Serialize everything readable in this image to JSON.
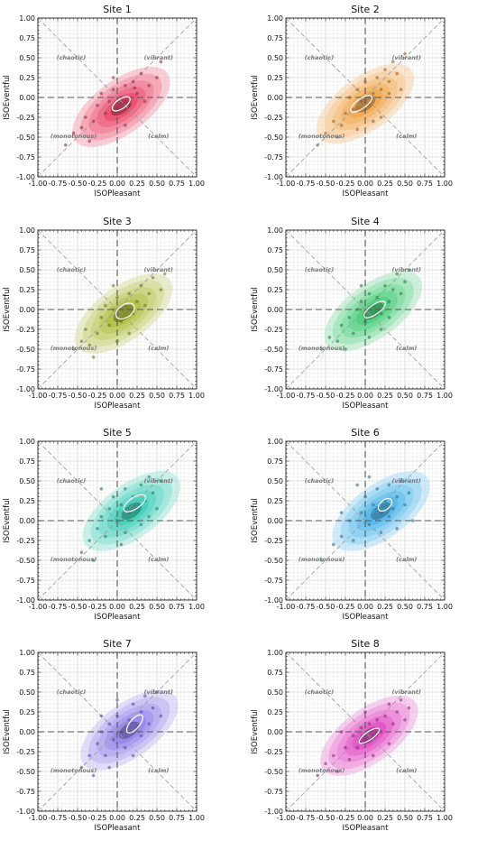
{
  "figure": {
    "panel_titles": [
      "Site 1",
      "Site 2",
      "Site 3",
      "Site 4",
      "Site 5",
      "Site 6",
      "Site 7",
      "Site 8"
    ]
  },
  "chart_data": [
    {
      "type": "scatter",
      "title": "Site 1",
      "xlabel": "ISOPleasant",
      "ylabel": "ISOEventful",
      "xlim": [
        -1,
        1
      ],
      "ylim": [
        -1,
        1
      ],
      "ticks": [
        "-1.00",
        "-0.75",
        "-0.50",
        "-0.25",
        "0.00",
        "0.25",
        "0.50",
        "0.75",
        "1.00"
      ],
      "quadrant_labels": [
        "(chaotic)",
        "(vibrant)",
        "(monotonous)",
        "(calm)"
      ],
      "grid": true,
      "color": "#e8395f",
      "density_center": [
        0.05,
        -0.12
      ],
      "mean_ellipse": {
        "center": [
          0.05,
          -0.08
        ],
        "rx": 0.13,
        "ry": 0.06,
        "angle": 35
      },
      "points": [
        [
          -0.65,
          -0.6
        ],
        [
          -0.55,
          -0.45
        ],
        [
          -0.45,
          -0.38
        ],
        [
          -0.4,
          -0.25
        ],
        [
          -0.3,
          -0.3
        ],
        [
          -0.25,
          -0.1
        ],
        [
          -0.2,
          0.05
        ],
        [
          -0.15,
          -0.2
        ],
        [
          -0.1,
          -0.05
        ],
        [
          -0.05,
          0.1
        ],
        [
          0.0,
          -0.15
        ],
        [
          0.05,
          0.0
        ],
        [
          0.1,
          0.15
        ],
        [
          0.15,
          -0.1
        ],
        [
          0.2,
          0.2
        ],
        [
          0.25,
          0.05
        ],
        [
          0.3,
          0.3
        ],
        [
          0.35,
          -0.05
        ],
        [
          0.4,
          0.15
        ],
        [
          0.5,
          0.25
        ],
        [
          0.55,
          0.45
        ],
        [
          -0.35,
          -0.55
        ],
        [
          0.1,
          -0.35
        ],
        [
          -0.05,
          0.25
        ],
        [
          0.22,
          0.12
        ]
      ]
    },
    {
      "type": "scatter",
      "title": "Site 2",
      "xlabel": "ISOPleasant",
      "ylabel": "ISOEventful",
      "xlim": [
        -1,
        1
      ],
      "ylim": [
        -1,
        1
      ],
      "ticks": [
        "-1.00",
        "-0.75",
        "-0.50",
        "-0.25",
        "0.00",
        "0.25",
        "0.50",
        "0.75",
        "1.00"
      ],
      "quadrant_labels": [
        "(chaotic)",
        "(vibrant)",
        "(monotonous)",
        "(calm)"
      ],
      "grid": true,
      "color": "#f0a040",
      "density_center": [
        0.0,
        -0.08
      ],
      "mean_ellipse": {
        "center": [
          -0.05,
          -0.08
        ],
        "rx": 0.16,
        "ry": 0.06,
        "angle": 35
      },
      "points": [
        [
          -0.6,
          -0.6
        ],
        [
          -0.5,
          -0.45
        ],
        [
          -0.4,
          -0.3
        ],
        [
          -0.35,
          -0.5
        ],
        [
          -0.25,
          -0.2
        ],
        [
          -0.2,
          0.0
        ],
        [
          -0.15,
          -0.15
        ],
        [
          -0.1,
          0.1
        ],
        [
          -0.05,
          -0.05
        ],
        [
          0.0,
          0.2
        ],
        [
          0.05,
          -0.1
        ],
        [
          0.1,
          0.05
        ],
        [
          0.15,
          0.25
        ],
        [
          0.2,
          0.1
        ],
        [
          0.25,
          0.35
        ],
        [
          0.3,
          0.2
        ],
        [
          0.35,
          0.45
        ],
        [
          0.4,
          0.3
        ],
        [
          0.45,
          0.1
        ],
        [
          0.5,
          0.55
        ],
        [
          -0.3,
          -0.35
        ],
        [
          0.1,
          -0.3
        ],
        [
          0.2,
          -0.25
        ],
        [
          -0.1,
          -0.4
        ],
        [
          0.3,
          0.05
        ]
      ]
    },
    {
      "type": "scatter",
      "title": "Site 3",
      "xlabel": "ISOPleasant",
      "ylabel": "ISOEventful",
      "xlim": [
        -1,
        1
      ],
      "ylim": [
        -1,
        1
      ],
      "ticks": [
        "-1.00",
        "-0.75",
        "-0.50",
        "-0.25",
        "0.00",
        "0.25",
        "0.50",
        "0.75",
        "1.00"
      ],
      "quadrant_labels": [
        "(chaotic)",
        "(vibrant)",
        "(monotonous)",
        "(calm)"
      ],
      "grid": true,
      "color": "#a8b830",
      "density_center": [
        0.08,
        -0.05
      ],
      "mean_ellipse": {
        "center": [
          0.1,
          -0.02
        ],
        "rx": 0.13,
        "ry": 0.08,
        "angle": 35
      },
      "points": [
        [
          -0.55,
          -0.5
        ],
        [
          -0.45,
          -0.4
        ],
        [
          -0.4,
          -0.25
        ],
        [
          -0.35,
          -0.45
        ],
        [
          -0.25,
          -0.3
        ],
        [
          -0.2,
          -0.1
        ],
        [
          -0.15,
          0.05
        ],
        [
          -0.1,
          -0.2
        ],
        [
          -0.05,
          0.0
        ],
        [
          0.0,
          0.15
        ],
        [
          0.05,
          -0.15
        ],
        [
          0.1,
          0.05
        ],
        [
          0.15,
          0.2
        ],
        [
          0.2,
          -0.05
        ],
        [
          0.25,
          0.1
        ],
        [
          0.3,
          0.3
        ],
        [
          0.35,
          0.05
        ],
        [
          0.4,
          0.2
        ],
        [
          0.45,
          0.4
        ],
        [
          0.55,
          0.25
        ],
        [
          0.6,
          0.45
        ],
        [
          -0.3,
          -0.6
        ],
        [
          0.0,
          -0.4
        ],
        [
          0.15,
          -0.3
        ],
        [
          -0.05,
          0.3
        ]
      ]
    },
    {
      "type": "scatter",
      "title": "Site 4",
      "xlabel": "ISOPleasant",
      "ylabel": "ISOEventful",
      "xlim": [
        -1,
        1
      ],
      "ylim": [
        -1,
        1
      ],
      "ticks": [
        "-1.00",
        "-0.75",
        "-0.50",
        "-0.25",
        "0.00",
        "0.25",
        "0.50",
        "0.75",
        "1.00"
      ],
      "quadrant_labels": [
        "(chaotic)",
        "(vibrant)",
        "(monotonous)",
        "(calm)"
      ],
      "grid": true,
      "color": "#3cc870",
      "density_center": [
        0.1,
        -0.02
      ],
      "mean_ellipse": {
        "center": [
          0.12,
          0.0
        ],
        "rx": 0.16,
        "ry": 0.06,
        "angle": 35
      },
      "points": [
        [
          -0.55,
          -0.5
        ],
        [
          -0.45,
          -0.35
        ],
        [
          -0.35,
          -0.4
        ],
        [
          -0.3,
          -0.2
        ],
        [
          -0.2,
          -0.1
        ],
        [
          -0.15,
          -0.3
        ],
        [
          -0.1,
          0.0
        ],
        [
          -0.05,
          0.1
        ],
        [
          0.0,
          -0.15
        ],
        [
          0.05,
          0.2
        ],
        [
          0.1,
          0.05
        ],
        [
          0.15,
          0.15
        ],
        [
          0.2,
          -0.05
        ],
        [
          0.25,
          0.3
        ],
        [
          0.3,
          0.1
        ],
        [
          0.35,
          0.25
        ],
        [
          0.4,
          0.45
        ],
        [
          0.45,
          0.2
        ],
        [
          0.5,
          0.35
        ],
        [
          0.55,
          0.5
        ],
        [
          -0.25,
          -0.5
        ],
        [
          0.05,
          -0.35
        ],
        [
          0.2,
          -0.25
        ],
        [
          -0.05,
          0.3
        ],
        [
          0.3,
          -0.1
        ]
      ]
    },
    {
      "type": "scatter",
      "title": "Site 5",
      "xlabel": "ISOPleasant",
      "ylabel": "ISOEventful",
      "xlim": [
        -1,
        1
      ],
      "ylim": [
        -1,
        1
      ],
      "ticks": [
        "-1.00",
        "-0.75",
        "-0.50",
        "-0.25",
        "0.00",
        "0.25",
        "0.50",
        "0.75",
        "1.00"
      ],
      "quadrant_labels": [
        "(chaotic)",
        "(vibrant)",
        "(monotonous)",
        "(calm)"
      ],
      "grid": true,
      "color": "#30c8b0",
      "density_center": [
        0.18,
        0.12
      ],
      "mean_ellipse": {
        "center": [
          0.22,
          0.22
        ],
        "rx": 0.16,
        "ry": 0.07,
        "angle": 35
      },
      "points": [
        [
          -0.45,
          -0.4
        ],
        [
          -0.35,
          -0.25
        ],
        [
          -0.3,
          -0.5
        ],
        [
          -0.25,
          -0.1
        ],
        [
          -0.2,
          0.05
        ],
        [
          -0.15,
          -0.2
        ],
        [
          -0.1,
          0.15
        ],
        [
          -0.05,
          0.3
        ],
        [
          0.0,
          0.0
        ],
        [
          0.05,
          0.2
        ],
        [
          0.1,
          0.4
        ],
        [
          0.15,
          0.1
        ],
        [
          0.2,
          0.3
        ],
        [
          0.25,
          0.15
        ],
        [
          0.3,
          0.45
        ],
        [
          0.35,
          0.25
        ],
        [
          0.4,
          0.55
        ],
        [
          0.45,
          0.35
        ],
        [
          0.5,
          0.15
        ],
        [
          0.55,
          0.5
        ],
        [
          -0.2,
          0.4
        ],
        [
          0.1,
          -0.15
        ],
        [
          0.3,
          -0.05
        ],
        [
          0.05,
          -0.3
        ],
        [
          0.4,
          0.05
        ]
      ]
    },
    {
      "type": "scatter",
      "title": "Site 6",
      "xlabel": "ISOPleasant",
      "ylabel": "ISOEventful",
      "xlim": [
        -1,
        1
      ],
      "ylim": [
        -1,
        1
      ],
      "ticks": [
        "-1.00",
        "-0.75",
        "-0.50",
        "-0.25",
        "0.00",
        "0.25",
        "0.50",
        "0.75",
        "1.00"
      ],
      "quadrant_labels": [
        "(chaotic)",
        "(vibrant)",
        "(monotonous)",
        "(calm)"
      ],
      "grid": true,
      "color": "#40b0e8",
      "density_center": [
        0.2,
        0.12
      ],
      "mean_ellipse": {
        "center": [
          0.25,
          0.2
        ],
        "rx": 0.1,
        "ry": 0.06,
        "angle": 40
      },
      "points": [
        [
          -0.55,
          -0.5
        ],
        [
          -0.4,
          -0.3
        ],
        [
          -0.3,
          -0.2
        ],
        [
          -0.2,
          0.0
        ],
        [
          -0.15,
          -0.25
        ],
        [
          -0.05,
          0.1
        ],
        [
          0.0,
          0.3
        ],
        [
          0.05,
          -0.05
        ],
        [
          0.1,
          0.2
        ],
        [
          0.15,
          0.4
        ],
        [
          0.2,
          0.1
        ],
        [
          0.25,
          0.25
        ],
        [
          0.3,
          0.45
        ],
        [
          0.35,
          0.15
        ],
        [
          0.4,
          0.3
        ],
        [
          0.45,
          0.5
        ],
        [
          0.5,
          0.2
        ],
        [
          0.55,
          0.35
        ],
        [
          0.6,
          0.0
        ],
        [
          -0.1,
          0.45
        ],
        [
          0.2,
          -0.15
        ],
        [
          0.4,
          -0.1
        ],
        [
          0.05,
          0.55
        ],
        [
          0.3,
          0.05
        ],
        [
          -0.3,
          0.1
        ]
      ]
    },
    {
      "type": "scatter",
      "title": "Site 7",
      "xlabel": "ISOPleasant",
      "ylabel": "ISOEventful",
      "xlim": [
        -1,
        1
      ],
      "ylim": [
        -1,
        1
      ],
      "ticks": [
        "-1.00",
        "-0.75",
        "-0.50",
        "-0.25",
        "0.00",
        "0.25",
        "0.50",
        "0.75",
        "1.00"
      ],
      "quadrant_labels": [
        "(chaotic)",
        "(vibrant)",
        "(monotonous)",
        "(calm)"
      ],
      "grid": true,
      "color": "#8878e8",
      "density_center": [
        0.15,
        0.02
      ],
      "mean_ellipse": {
        "center": [
          0.22,
          0.1
        ],
        "rx": 0.14,
        "ry": 0.06,
        "angle": 50
      },
      "points": [
        [
          -0.45,
          -0.45
        ],
        [
          -0.35,
          -0.3
        ],
        [
          -0.3,
          -0.55
        ],
        [
          -0.25,
          -0.15
        ],
        [
          -0.2,
          0.0
        ],
        [
          -0.15,
          -0.3
        ],
        [
          -0.1,
          0.1
        ],
        [
          -0.05,
          -0.1
        ],
        [
          0.0,
          0.2
        ],
        [
          0.05,
          0.0
        ],
        [
          0.1,
          -0.2
        ],
        [
          0.15,
          0.15
        ],
        [
          0.2,
          0.35
        ],
        [
          0.25,
          0.05
        ],
        [
          0.3,
          0.25
        ],
        [
          0.35,
          0.45
        ],
        [
          0.4,
          0.1
        ],
        [
          0.45,
          0.3
        ],
        [
          0.5,
          0.5
        ],
        [
          0.55,
          0.2
        ],
        [
          -0.1,
          -0.45
        ],
        [
          0.2,
          -0.3
        ],
        [
          0.0,
          0.4
        ],
        [
          0.3,
          -0.05
        ],
        [
          -0.2,
          0.2
        ]
      ]
    },
    {
      "type": "scatter",
      "title": "Site 8",
      "xlabel": "ISOPleasant",
      "ylabel": "ISOEventful",
      "xlim": [
        -1,
        1
      ],
      "ylim": [
        -1,
        1
      ],
      "ticks": [
        "-1.00",
        "-0.75",
        "-0.50",
        "-0.25",
        "0.00",
        "0.25",
        "0.50",
        "0.75",
        "1.00"
      ],
      "quadrant_labels": [
        "(chaotic)",
        "(vibrant)",
        "(monotonous)",
        "(calm)"
      ],
      "grid": true,
      "color": "#e040c0",
      "density_center": [
        0.05,
        -0.05
      ],
      "mean_ellipse": {
        "center": [
          0.05,
          -0.05
        ],
        "rx": 0.15,
        "ry": 0.05,
        "angle": 35
      },
      "points": [
        [
          -0.6,
          -0.55
        ],
        [
          -0.5,
          -0.4
        ],
        [
          -0.4,
          -0.3
        ],
        [
          -0.35,
          -0.5
        ],
        [
          -0.25,
          -0.2
        ],
        [
          -0.2,
          -0.35
        ],
        [
          -0.15,
          -0.05
        ],
        [
          -0.1,
          -0.2
        ],
        [
          -0.05,
          0.05
        ],
        [
          0.0,
          -0.1
        ],
        [
          0.05,
          0.1
        ],
        [
          0.1,
          -0.05
        ],
        [
          0.15,
          0.15
        ],
        [
          0.2,
          0.0
        ],
        [
          0.25,
          0.2
        ],
        [
          0.3,
          0.35
        ],
        [
          0.35,
          0.1
        ],
        [
          0.4,
          0.25
        ],
        [
          0.45,
          0.4
        ],
        [
          0.5,
          0.15
        ],
        [
          0.55,
          0.3
        ],
        [
          -0.3,
          0.0
        ],
        [
          0.1,
          -0.3
        ],
        [
          0.3,
          -0.15
        ],
        [
          0.0,
          0.25
        ]
      ]
    }
  ]
}
